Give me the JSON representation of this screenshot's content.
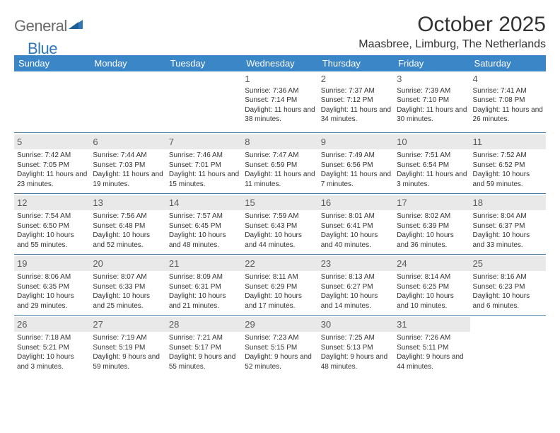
{
  "logo": {
    "text_gray": "General",
    "text_blue": "Blue"
  },
  "title": "October 2025",
  "location": "Maasbree, Limburg, The Netherlands",
  "colors": {
    "header_bg": "#3b86c6",
    "header_text": "#ffffff",
    "band_bg": "#e9e9e9",
    "rule": "#4a7fa8",
    "logo_gray": "#6b6b6b",
    "logo_blue": "#2e77b8"
  },
  "columns": [
    "Sunday",
    "Monday",
    "Tuesday",
    "Wednesday",
    "Thursday",
    "Friday",
    "Saturday"
  ],
  "weeks": [
    [
      null,
      null,
      null,
      {
        "n": "1",
        "sunrise": "7:36 AM",
        "sunset": "7:14 PM",
        "daylight": "11 hours and 38 minutes."
      },
      {
        "n": "2",
        "sunrise": "7:37 AM",
        "sunset": "7:12 PM",
        "daylight": "11 hours and 34 minutes."
      },
      {
        "n": "3",
        "sunrise": "7:39 AM",
        "sunset": "7:10 PM",
        "daylight": "11 hours and 30 minutes."
      },
      {
        "n": "4",
        "sunrise": "7:41 AM",
        "sunset": "7:08 PM",
        "daylight": "11 hours and 26 minutes."
      }
    ],
    [
      {
        "n": "5",
        "sunrise": "7:42 AM",
        "sunset": "7:05 PM",
        "daylight": "11 hours and 23 minutes."
      },
      {
        "n": "6",
        "sunrise": "7:44 AM",
        "sunset": "7:03 PM",
        "daylight": "11 hours and 19 minutes."
      },
      {
        "n": "7",
        "sunrise": "7:46 AM",
        "sunset": "7:01 PM",
        "daylight": "11 hours and 15 minutes."
      },
      {
        "n": "8",
        "sunrise": "7:47 AM",
        "sunset": "6:59 PM",
        "daylight": "11 hours and 11 minutes."
      },
      {
        "n": "9",
        "sunrise": "7:49 AM",
        "sunset": "6:56 PM",
        "daylight": "11 hours and 7 minutes."
      },
      {
        "n": "10",
        "sunrise": "7:51 AM",
        "sunset": "6:54 PM",
        "daylight": "11 hours and 3 minutes."
      },
      {
        "n": "11",
        "sunrise": "7:52 AM",
        "sunset": "6:52 PM",
        "daylight": "10 hours and 59 minutes."
      }
    ],
    [
      {
        "n": "12",
        "sunrise": "7:54 AM",
        "sunset": "6:50 PM",
        "daylight": "10 hours and 55 minutes."
      },
      {
        "n": "13",
        "sunrise": "7:56 AM",
        "sunset": "6:48 PM",
        "daylight": "10 hours and 52 minutes."
      },
      {
        "n": "14",
        "sunrise": "7:57 AM",
        "sunset": "6:45 PM",
        "daylight": "10 hours and 48 minutes."
      },
      {
        "n": "15",
        "sunrise": "7:59 AM",
        "sunset": "6:43 PM",
        "daylight": "10 hours and 44 minutes."
      },
      {
        "n": "16",
        "sunrise": "8:01 AM",
        "sunset": "6:41 PM",
        "daylight": "10 hours and 40 minutes."
      },
      {
        "n": "17",
        "sunrise": "8:02 AM",
        "sunset": "6:39 PM",
        "daylight": "10 hours and 36 minutes."
      },
      {
        "n": "18",
        "sunrise": "8:04 AM",
        "sunset": "6:37 PM",
        "daylight": "10 hours and 33 minutes."
      }
    ],
    [
      {
        "n": "19",
        "sunrise": "8:06 AM",
        "sunset": "6:35 PM",
        "daylight": "10 hours and 29 minutes."
      },
      {
        "n": "20",
        "sunrise": "8:07 AM",
        "sunset": "6:33 PM",
        "daylight": "10 hours and 25 minutes."
      },
      {
        "n": "21",
        "sunrise": "8:09 AM",
        "sunset": "6:31 PM",
        "daylight": "10 hours and 21 minutes."
      },
      {
        "n": "22",
        "sunrise": "8:11 AM",
        "sunset": "6:29 PM",
        "daylight": "10 hours and 17 minutes."
      },
      {
        "n": "23",
        "sunrise": "8:13 AM",
        "sunset": "6:27 PM",
        "daylight": "10 hours and 14 minutes."
      },
      {
        "n": "24",
        "sunrise": "8:14 AM",
        "sunset": "6:25 PM",
        "daylight": "10 hours and 10 minutes."
      },
      {
        "n": "25",
        "sunrise": "8:16 AM",
        "sunset": "6:23 PM",
        "daylight": "10 hours and 6 minutes."
      }
    ],
    [
      {
        "n": "26",
        "sunrise": "7:18 AM",
        "sunset": "5:21 PM",
        "daylight": "10 hours and 3 minutes."
      },
      {
        "n": "27",
        "sunrise": "7:19 AM",
        "sunset": "5:19 PM",
        "daylight": "9 hours and 59 minutes."
      },
      {
        "n": "28",
        "sunrise": "7:21 AM",
        "sunset": "5:17 PM",
        "daylight": "9 hours and 55 minutes."
      },
      {
        "n": "29",
        "sunrise": "7:23 AM",
        "sunset": "5:15 PM",
        "daylight": "9 hours and 52 minutes."
      },
      {
        "n": "30",
        "sunrise": "7:25 AM",
        "sunset": "5:13 PM",
        "daylight": "9 hours and 48 minutes."
      },
      {
        "n": "31",
        "sunrise": "7:26 AM",
        "sunset": "5:11 PM",
        "daylight": "9 hours and 44 minutes."
      },
      null
    ]
  ],
  "labels": {
    "sunrise": "Sunrise: ",
    "sunset": "Sunset: ",
    "daylight": "Daylight: "
  }
}
